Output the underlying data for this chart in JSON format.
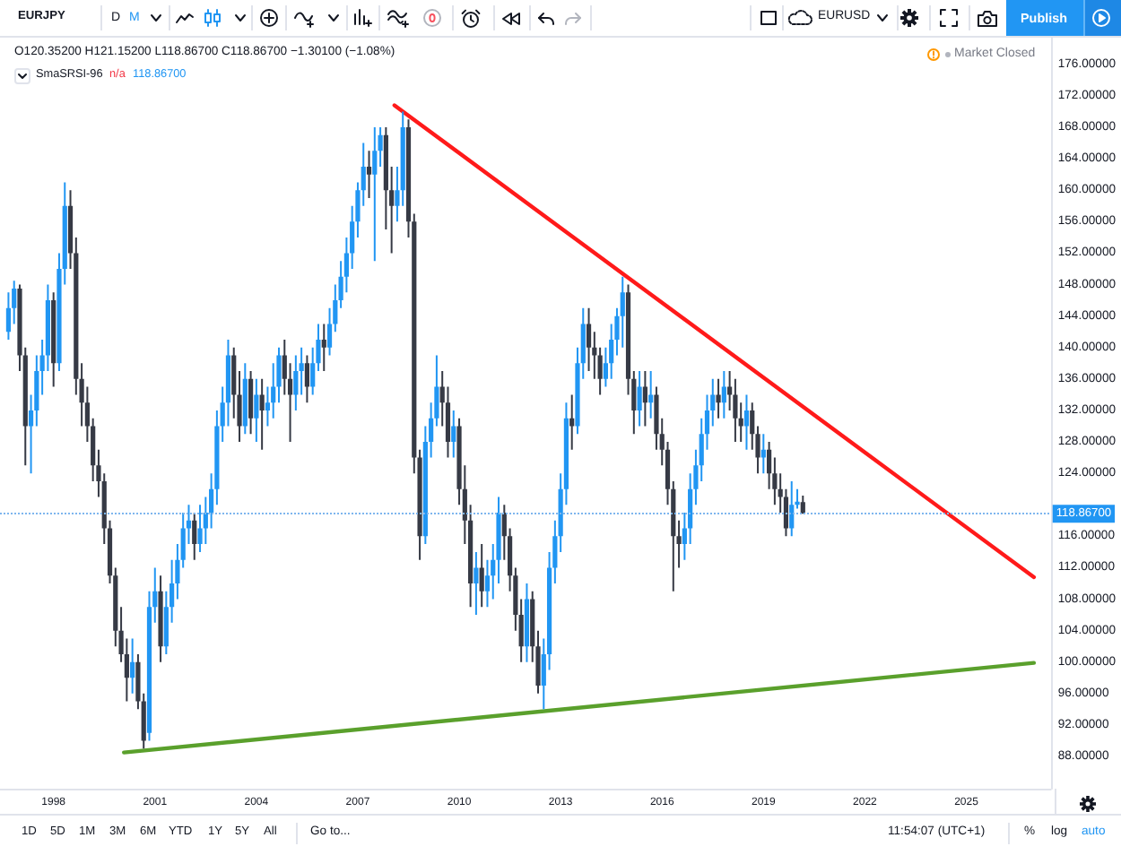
{
  "chart_data": {
    "type": "candlestick",
    "title": "EURJPY",
    "subtitle": "O120.35200 H121.15200 L118.86700 C118.86700 −1.30100 (−1.08%)",
    "annotations": [
      "D",
      "M",
      "EURUSD",
      "Publish",
      "SmaSRSI-96",
      "n/a",
      "118.86700",
      "Market Closed",
      "1D",
      "5D",
      "1M",
      "3M",
      "6M",
      "YTD",
      "1Y",
      "5Y",
      "All",
      "Go to...",
      "11:54:07 (UTC+1)",
      "%",
      "log",
      "auto"
    ],
    "xlim": [
      "1996-06",
      "2027-07"
    ],
    "xticks": [
      "1998",
      "2001",
      "2004",
      "2007",
      "2010",
      "2013",
      "2016",
      "2019",
      "2022",
      "2025"
    ],
    "ylim": [
      83.9,
      179.4
    ],
    "yticks": [
      {
        "value": 88,
        "label": "88.00000"
      },
      {
        "value": 92,
        "label": "92.00000"
      },
      {
        "value": 96,
        "label": "96.00000"
      },
      {
        "value": 100,
        "label": "100.00000"
      },
      {
        "value": 104,
        "label": "104.00000"
      },
      {
        "value": 108,
        "label": "108.00000"
      },
      {
        "value": 112,
        "label": "112.00000"
      },
      {
        "value": 116,
        "label": "116.00000"
      },
      {
        "value": 124,
        "label": "124.00000"
      },
      {
        "value": 128,
        "label": "128.00000"
      },
      {
        "value": 132,
        "label": "132.00000"
      },
      {
        "value": 136,
        "label": "136.00000"
      },
      {
        "value": 140,
        "label": "140.00000"
      },
      {
        "value": 144,
        "label": "144.00000"
      },
      {
        "value": 148,
        "label": "148.00000"
      },
      {
        "value": 152,
        "label": "152.00000"
      },
      {
        "value": 156,
        "label": "156.00000"
      },
      {
        "value": 160,
        "label": "160.00000"
      },
      {
        "value": 164,
        "label": "164.00000"
      },
      {
        "value": 168,
        "label": "168.00000"
      },
      {
        "value": 172,
        "label": "172.00000"
      },
      {
        "value": 176,
        "label": "176.00000"
      }
    ],
    "ref_lines": [
      {
        "axis": "y",
        "value": 118.867,
        "label": "118.86700",
        "color": "#7eb6ee",
        "line_style": "dotted"
      }
    ],
    "series": [
      {
        "x": [
          "1996-09",
          "1996-11",
          "1997-01",
          "1997-03",
          "1997-05",
          "1997-07",
          "1997-09",
          "1997-11",
          "1998-01",
          "1998-03",
          "1998-05",
          "1998-07",
          "1998-09",
          "1998-11",
          "1999-01",
          "1999-03",
          "1999-05",
          "1999-07",
          "1999-09",
          "1999-11",
          "2000-01",
          "2000-03",
          "2000-05",
          "2000-07",
          "2000-09",
          "2000-11",
          "2001-01",
          "2001-03",
          "2001-05",
          "2001-07",
          "2001-09",
          "2001-11",
          "2002-01",
          "2002-03",
          "2002-05",
          "2002-07",
          "2002-09",
          "2002-11",
          "2003-01",
          "2003-03",
          "2003-05",
          "2003-07",
          "2003-09",
          "2003-11",
          "2004-01",
          "2004-03",
          "2004-05",
          "2004-07",
          "2004-09",
          "2004-11",
          "2005-01",
          "2005-03",
          "2005-05",
          "2005-07",
          "2005-09",
          "2005-11",
          "2006-01",
          "2006-03",
          "2006-05",
          "2006-07",
          "2006-09",
          "2006-11",
          "2007-01",
          "2007-03",
          "2007-05",
          "2007-07",
          "2007-09",
          "2007-11",
          "2008-01",
          "2008-03",
          "2008-05",
          "2008-07",
          "2008-09",
          "2008-11",
          "2009-01",
          "2009-03",
          "2009-05",
          "2009-07",
          "2009-09",
          "2009-11",
          "2010-01",
          "2010-03",
          "2010-05",
          "2010-07",
          "2010-09",
          "2010-11",
          "2011-01",
          "2011-03",
          "2011-05",
          "2011-07",
          "2011-09",
          "2011-11",
          "2012-01",
          "2012-03",
          "2012-05",
          "2012-07",
          "2012-09",
          "2012-11",
          "2013-01",
          "2013-03",
          "2013-05",
          "2013-07",
          "2013-09",
          "2013-11",
          "2014-01",
          "2014-03",
          "2014-05",
          "2014-07",
          "2014-09",
          "2014-11",
          "2015-01",
          "2015-03",
          "2015-05",
          "2015-07",
          "2015-09",
          "2015-11",
          "2016-01",
          "2016-03",
          "2016-05",
          "2016-07",
          "2016-09",
          "2016-11",
          "2017-01",
          "2017-03",
          "2017-05",
          "2017-07",
          "2017-09",
          "2017-11",
          "2018-01",
          "2018-03",
          "2018-05",
          "2018-07",
          "2018-09",
          "2018-11",
          "2019-01",
          "2019-03",
          "2019-05",
          "2019-07",
          "2019-09",
          "2019-11",
          "2020-01",
          "2020-03"
        ],
        "ohlc": [
          [
            142,
            147,
            141,
            145
          ],
          [
            145,
            148.5,
            143,
            147.5
          ],
          [
            147.5,
            148,
            137,
            139
          ],
          [
            139,
            140,
            125,
            130
          ],
          [
            130,
            134,
            124,
            132
          ],
          [
            132,
            139,
            130,
            137
          ],
          [
            137,
            141,
            134,
            139
          ],
          [
            139,
            148,
            137,
            146
          ],
          [
            146,
            147,
            135,
            138
          ],
          [
            138,
            152,
            137,
            150
          ],
          [
            150,
            161,
            148,
            158
          ],
          [
            158,
            160,
            150,
            152
          ],
          [
            152,
            154,
            134,
            136
          ],
          [
            136,
            138,
            130,
            133
          ],
          [
            133,
            135,
            128,
            130
          ],
          [
            130,
            131,
            123,
            125
          ],
          [
            125,
            127,
            121,
            123
          ],
          [
            123,
            124,
            115,
            117
          ],
          [
            117,
            118,
            110,
            111
          ],
          [
            111,
            112,
            102,
            104
          ],
          [
            104,
            107,
            100,
            101
          ],
          [
            101,
            103,
            95,
            98
          ],
          [
            98,
            103,
            96,
            100
          ],
          [
            100,
            101,
            94,
            95
          ],
          [
            95,
            96,
            89,
            90
          ],
          [
            91,
            109,
            90,
            107
          ],
          [
            107,
            112,
            105,
            109
          ],
          [
            109,
            111,
            100,
            102
          ],
          [
            102,
            109,
            101,
            107
          ],
          [
            107,
            113,
            105,
            110
          ],
          [
            110,
            115,
            108,
            113
          ],
          [
            113,
            119,
            112,
            117
          ],
          [
            117,
            120,
            115,
            118
          ],
          [
            118,
            119,
            113,
            115
          ],
          [
            115,
            120,
            114,
            117
          ],
          [
            117,
            121,
            115,
            119
          ],
          [
            119,
            124,
            117,
            122
          ],
          [
            122,
            132,
            120,
            130
          ],
          [
            130,
            135,
            128,
            133
          ],
          [
            133,
            141,
            130,
            139
          ],
          [
            139,
            140,
            131,
            134
          ],
          [
            134,
            137,
            128,
            130
          ],
          [
            130,
            138,
            129,
            136
          ],
          [
            136,
            137,
            129,
            131
          ],
          [
            131,
            136,
            128,
            134
          ],
          [
            134,
            136,
            127,
            132
          ],
          [
            132,
            135,
            130,
            133
          ],
          [
            133,
            138,
            131,
            135
          ],
          [
            135,
            140,
            133,
            139
          ],
          [
            139,
            141,
            134,
            136
          ],
          [
            136,
            138,
            128,
            134
          ],
          [
            134,
            139,
            132,
            137
          ],
          [
            137,
            140,
            134,
            138
          ],
          [
            138,
            139,
            133,
            135
          ],
          [
            135,
            140,
            134,
            138
          ],
          [
            138,
            143,
            137,
            141
          ],
          [
            141,
            143,
            137,
            140
          ],
          [
            140,
            145,
            139,
            143
          ],
          [
            143,
            148,
            142,
            146
          ],
          [
            146,
            151,
            145,
            149
          ],
          [
            149,
            154,
            147,
            152
          ],
          [
            152,
            158,
            150,
            156
          ],
          [
            156,
            161,
            154,
            160
          ],
          [
            160,
            166,
            158,
            163
          ],
          [
            163,
            165,
            159,
            162
          ],
          [
            162,
            168,
            151,
            165
          ],
          [
            165,
            168,
            163,
            167
          ],
          [
            167,
            168,
            155,
            160
          ],
          [
            160,
            163,
            152,
            158
          ],
          [
            158,
            163,
            156,
            160
          ],
          [
            160,
            170,
            158,
            168
          ],
          [
            168,
            169,
            154,
            156
          ],
          [
            156,
            157,
            124,
            126
          ],
          [
            126,
            127,
            113,
            116
          ],
          [
            116,
            130,
            115,
            128
          ],
          [
            128,
            133,
            126,
            131
          ],
          [
            131,
            139,
            130,
            135
          ],
          [
            135,
            137,
            130,
            133
          ],
          [
            133,
            135,
            126,
            128
          ],
          [
            128,
            132,
            126,
            130
          ],
          [
            130,
            131,
            120,
            122
          ],
          [
            122,
            125,
            115,
            118
          ],
          [
            118,
            120,
            107,
            110
          ],
          [
            110,
            114,
            106,
            112
          ],
          [
            112,
            115,
            107,
            109
          ],
          [
            109,
            113,
            107,
            111
          ],
          [
            111,
            115,
            108,
            113
          ],
          [
            113,
            121,
            110,
            119
          ],
          [
            119,
            120,
            113,
            116
          ],
          [
            116,
            117,
            109,
            111
          ],
          [
            111,
            112,
            104,
            106
          ],
          [
            106,
            108,
            100,
            102
          ],
          [
            102,
            110,
            100,
            108
          ],
          [
            108,
            109,
            100,
            102
          ],
          [
            102,
            104,
            96,
            97
          ],
          [
            97,
            103,
            94,
            101
          ],
          [
            101,
            114,
            99,
            112
          ],
          [
            112,
            118,
            110,
            116
          ],
          [
            116,
            124,
            114,
            122
          ],
          [
            122,
            133,
            120,
            131
          ],
          [
            131,
            134,
            127,
            130
          ],
          [
            130,
            140,
            129,
            138
          ],
          [
            138,
            145,
            136,
            143
          ],
          [
            143,
            145,
            137,
            140
          ],
          [
            140,
            142,
            136,
            139
          ],
          [
            139,
            140,
            134,
            136
          ],
          [
            136,
            140,
            135,
            138
          ],
          [
            138,
            143,
            136,
            141
          ],
          [
            141,
            145,
            139,
            144
          ],
          [
            144,
            149,
            140,
            147
          ],
          [
            147,
            148,
            134,
            136
          ],
          [
            136,
            137,
            129,
            132
          ],
          [
            132,
            137,
            130,
            135
          ],
          [
            135,
            137,
            130,
            133
          ],
          [
            133,
            137,
            131,
            134
          ],
          [
            134,
            135,
            127,
            129
          ],
          [
            129,
            131,
            125,
            127
          ],
          [
            127,
            128,
            120,
            122
          ],
          [
            122,
            123,
            109,
            116
          ],
          [
            116,
            118,
            112,
            115
          ],
          [
            115,
            119,
            113,
            117
          ],
          [
            117,
            124,
            115,
            122
          ],
          [
            122,
            127,
            120,
            125
          ],
          [
            125,
            131,
            123,
            129
          ],
          [
            129,
            134,
            127,
            132
          ],
          [
            132,
            136,
            130,
            134
          ],
          [
            134,
            136,
            131,
            133
          ],
          [
            133,
            137,
            131,
            135
          ],
          [
            135,
            137,
            132,
            134
          ],
          [
            134,
            136,
            128,
            131
          ],
          [
            131,
            133,
            128,
            130
          ],
          [
            130,
            134,
            127,
            132
          ],
          [
            132,
            133,
            127,
            129
          ],
          [
            129,
            130,
            124,
            126
          ],
          [
            126,
            129,
            124,
            127
          ],
          [
            127,
            128,
            122,
            124
          ],
          [
            124,
            126,
            120,
            122
          ],
          [
            122,
            124,
            119,
            121
          ],
          [
            121,
            122,
            116,
            117
          ],
          [
            117,
            123,
            116,
            120
          ],
          [
            120,
            122,
            119.5,
            120.4
          ],
          [
            120.352,
            121.152,
            118.867,
            118.867
          ]
        ],
        "colors": [
          "#2196f3",
          "#2196f3",
          "#363a45",
          "#363a45",
          "#2196f3",
          "#2196f3",
          "#2196f3",
          "#2196f3",
          "#363a45",
          "#2196f3",
          "#2196f3",
          "#363a45",
          "#363a45",
          "#363a45",
          "#363a45",
          "#363a45",
          "#363a45",
          "#363a45",
          "#363a45",
          "#363a45",
          "#363a45",
          "#363a45",
          "#2196f3",
          "#363a45",
          "#363a45",
          "#2196f3",
          "#2196f3",
          "#363a45",
          "#2196f3",
          "#2196f3",
          "#2196f3",
          "#2196f3",
          "#2196f3",
          "#363a45",
          "#2196f3",
          "#2196f3",
          "#2196f3",
          "#2196f3",
          "#2196f3",
          "#2196f3",
          "#363a45",
          "#363a45",
          "#2196f3",
          "#363a45",
          "#2196f3",
          "#363a45",
          "#2196f3",
          "#2196f3",
          "#2196f3",
          "#363a45",
          "#363a45",
          "#2196f3",
          "#2196f3",
          "#363a45",
          "#2196f3",
          "#2196f3",
          "#363a45",
          "#2196f3",
          "#2196f3",
          "#2196f3",
          "#2196f3",
          "#2196f3",
          "#2196f3",
          "#2196f3",
          "#363a45",
          "#2196f3",
          "#2196f3",
          "#363a45",
          "#363a45",
          "#2196f3",
          "#2196f3",
          "#363a45",
          "#363a45",
          "#363a45",
          "#2196f3",
          "#2196f3",
          "#2196f3",
          "#363a45",
          "#363a45",
          "#2196f3",
          "#363a45",
          "#363a45",
          "#363a45",
          "#2196f3",
          "#363a45",
          "#2196f3",
          "#2196f3",
          "#2196f3",
          "#363a45",
          "#363a45",
          "#363a45",
          "#363a45",
          "#2196f3",
          "#363a45",
          "#363a45",
          "#2196f3",
          "#2196f3",
          "#2196f3",
          "#2196f3",
          "#2196f3",
          "#363a45",
          "#2196f3",
          "#2196f3",
          "#363a45",
          "#363a45",
          "#363a45",
          "#2196f3",
          "#2196f3",
          "#2196f3",
          "#2196f3",
          "#363a45",
          "#363a45",
          "#2196f3",
          "#363a45",
          "#2196f3",
          "#363a45",
          "#363a45",
          "#363a45",
          "#363a45",
          "#363a45",
          "#2196f3",
          "#2196f3",
          "#2196f3",
          "#2196f3",
          "#2196f3",
          "#2196f3",
          "#363a45",
          "#2196f3",
          "#363a45",
          "#363a45",
          "#363a45",
          "#2196f3",
          "#363a45",
          "#363a45",
          "#2196f3",
          "#363a45",
          "#363a45",
          "#363a45",
          "#363a45",
          "#2196f3",
          "#2196f3",
          "#363a45"
        ]
      },
      {
        "type": "line",
        "x": [
          "2008-02",
          "2027-01"
        ],
        "values": [
          170.8,
          110.8
        ],
        "color": "#ff1a1a"
      },
      {
        "type": "line",
        "x": [
          "2000-02",
          "2027-01"
        ],
        "values": [
          88.5,
          99.9
        ],
        "color": "#5aa02c"
      }
    ]
  }
}
